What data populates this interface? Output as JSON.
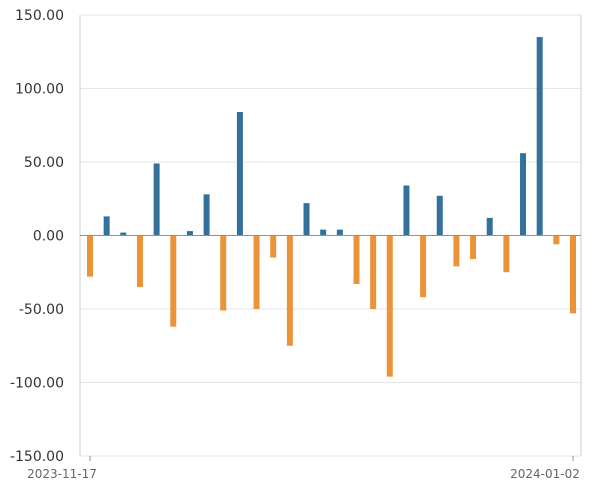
{
  "chart_data": {
    "type": "bar",
    "title": "",
    "xlabel": "",
    "ylabel": "",
    "x_tick_labels": [
      "2023-11-17",
      "2024-01-02"
    ],
    "y_ticks": [
      150,
      100,
      50,
      0,
      -50,
      -100,
      -150
    ],
    "y_tick_labels": [
      "150.00",
      "100.00",
      "50.00",
      "0.00",
      "-50.00",
      "-100.00",
      "-150.00"
    ],
    "ylim": [
      -150,
      150
    ],
    "grid": true,
    "colors": {
      "positive": "#33719b",
      "negative": "#ec9339"
    },
    "values": [
      -28,
      13,
      2,
      -35,
      49,
      -62,
      3,
      28,
      -51,
      84,
      -50,
      -15,
      -75,
      22,
      4,
      4,
      -33,
      -50,
      -96,
      34,
      -42,
      27,
      -21,
      -16,
      12,
      -25,
      56,
      135,
      -6,
      -53
    ]
  }
}
